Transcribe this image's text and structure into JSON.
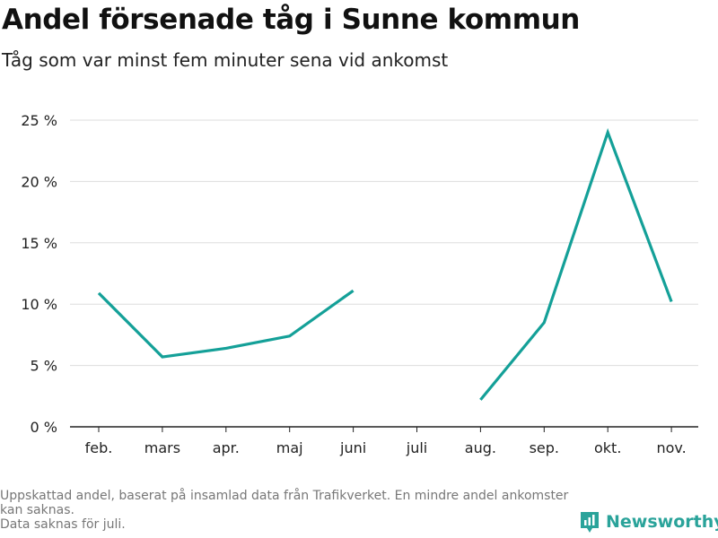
{
  "chart_data": {
    "type": "line",
    "title": "Andel försenade tåg i Sunne kommun",
    "subtitle": "Tåg som var minst fem minuter sena vid ankomst",
    "categories": [
      "feb.",
      "mars",
      "apr.",
      "maj",
      "juni",
      "juli",
      "aug.",
      "sep.",
      "okt.",
      "nov."
    ],
    "series": [
      {
        "name": "Andel försenade tåg",
        "values": [
          10.9,
          5.7,
          6.4,
          7.4,
          11.1,
          null,
          2.2,
          8.5,
          24.0,
          10.2
        ]
      }
    ],
    "ylim": [
      0,
      25
    ],
    "yticks": [
      0,
      5,
      10,
      15,
      20,
      25
    ],
    "ytick_labels": [
      "0 %",
      "5 %",
      "10 %",
      "15 %",
      "20 %",
      "25 %"
    ],
    "xlabel": "",
    "ylabel": "",
    "grid": true,
    "line_color": "#14a098"
  },
  "footnote": {
    "line1": "Uppskattad andel, baserat på insamlad data från Trafikverket. En mindre andel ankomster kan saknas.",
    "line2": "Data saknas för juli."
  },
  "brand": {
    "name": "Newsworthy",
    "icon": "newsworthy-logo-icon",
    "color": "#2aa39a"
  }
}
